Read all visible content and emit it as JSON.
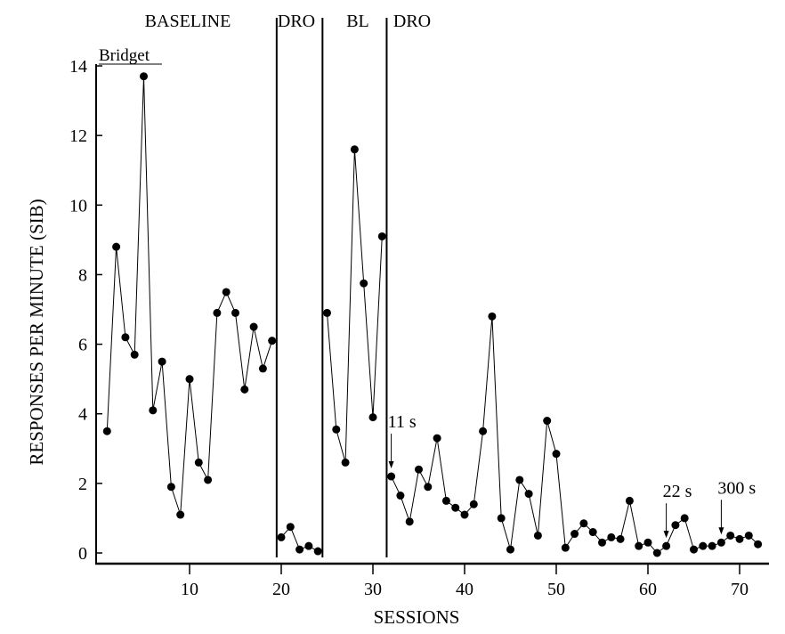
{
  "chart_data": {
    "type": "line",
    "title": "",
    "participant": "Bridget",
    "xlabel": "SESSIONS",
    "ylabel": "RESPONSES PER MINUTE (SIB)",
    "xlim": [
      0,
      73
    ],
    "ylim": [
      0,
      14
    ],
    "xticks": [
      10,
      20,
      30,
      40,
      50,
      60,
      70
    ],
    "yticks": [
      0,
      2,
      4,
      6,
      8,
      10,
      12,
      14
    ],
    "grid": false,
    "phases": [
      {
        "label": "BASELINE",
        "start": 1,
        "end": 19
      },
      {
        "label": "DRO",
        "start": 20,
        "end": 24
      },
      {
        "label": "BL",
        "start": 25,
        "end": 31
      },
      {
        "label": "DRO",
        "start": 32,
        "end": 72
      }
    ],
    "phase_change_lines": [
      19.5,
      24.5,
      31.5
    ],
    "annotations": [
      {
        "text": "11 s",
        "session": 32
      },
      {
        "text": "22 s",
        "session": 62
      },
      {
        "text": "300 s",
        "session": 68
      }
    ],
    "series": [
      {
        "name": "Bridget",
        "x": [
          1,
          2,
          3,
          4,
          5,
          6,
          7,
          8,
          9,
          10,
          11,
          12,
          13,
          14,
          15,
          16,
          17,
          18,
          19,
          20,
          21,
          22,
          23,
          24,
          25,
          26,
          27,
          28,
          29,
          30,
          31,
          32,
          33,
          34,
          35,
          36,
          37,
          38,
          39,
          40,
          41,
          42,
          43,
          44,
          45,
          46,
          47,
          48,
          49,
          50,
          51,
          52,
          53,
          54,
          55,
          56,
          57,
          58,
          59,
          60,
          61,
          62,
          63,
          64,
          65,
          66,
          67,
          68,
          69,
          70,
          71,
          72
        ],
        "values": [
          3.5,
          8.8,
          6.2,
          5.7,
          13.7,
          4.1,
          5.5,
          1.9,
          1.1,
          5.0,
          2.6,
          2.1,
          6.9,
          7.5,
          6.9,
          4.7,
          6.5,
          5.3,
          6.1,
          0.45,
          0.75,
          0.1,
          0.2,
          0.05,
          6.9,
          3.55,
          2.6,
          11.6,
          7.75,
          3.9,
          9.1,
          2.2,
          1.65,
          0.9,
          2.4,
          1.9,
          3.3,
          1.5,
          1.3,
          1.1,
          1.4,
          3.5,
          6.8,
          1.0,
          0.1,
          2.1,
          1.7,
          0.5,
          3.8,
          2.85,
          0.15,
          0.55,
          0.85,
          0.6,
          0.3,
          0.45,
          0.4,
          1.5,
          0.2,
          0.3,
          0.0,
          0.2,
          0.8,
          1.0,
          0.1,
          0.2,
          0.2,
          0.3,
          0.5,
          0.4,
          0.5,
          0.25
        ]
      }
    ]
  }
}
